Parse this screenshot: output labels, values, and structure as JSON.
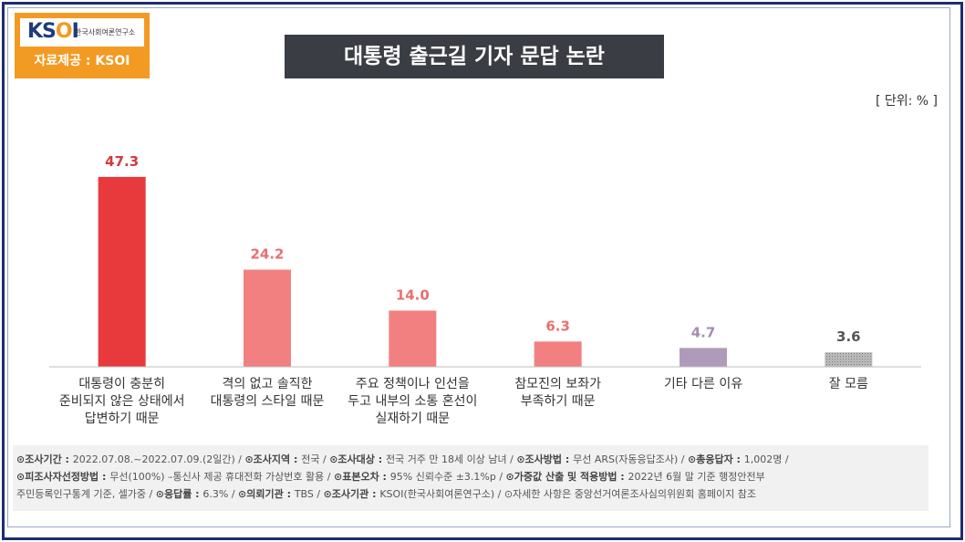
{
  "logo": {
    "mark": "KSOI",
    "org": "한국사회여론연구소",
    "source": "자료제공 : KSOI"
  },
  "title": "대통령 출근길 기자 문답 논란",
  "unit": "[ 단위: % ]",
  "chart_data": {
    "type": "bar",
    "title": "대통령 출근길 기자 문답 논란",
    "unit": "%",
    "categories": [
      [
        "대통령이 충분히",
        "준비되지 않은 상태에서",
        "답변하기 때문"
      ],
      [
        "격의 없고 솔직한",
        "대통령의 스타일 때문"
      ],
      [
        "주요 정책이나 인선을",
        "두고 내부의 소통 혼선이",
        "실재하기 때문"
      ],
      [
        "참모진의 보좌가",
        "부족하기 때문"
      ],
      [
        "기타 다른 이유"
      ],
      [
        "잘 모름"
      ]
    ],
    "values": [
      47.3,
      24.2,
      14.0,
      6.3,
      4.7,
      3.6
    ],
    "value_labels": [
      "47.3",
      "24.2",
      "14.0",
      "6.3",
      "4.7",
      "3.6"
    ],
    "colors": [
      "#e8393c",
      "#f28080",
      "#f28080",
      "#f28080",
      "#b09ab9",
      "#a9a9a9"
    ],
    "label_colors": [
      "#d5383b",
      "#ea6f6f",
      "#ea6f6f",
      "#ea6f6f",
      "#a48db0",
      "#555555"
    ],
    "ylim": [
      0,
      50
    ],
    "grid": false
  },
  "footnote": {
    "line1": [
      {
        "label": "⊙조사기간 : ",
        "text": "2022.07.08.~2022.07.09.(2일간) / "
      },
      {
        "label": "⊙조사지역 : ",
        "text": "전국 / "
      },
      {
        "label": "⊙조사대상 : ",
        "text": "전국 거주 만 18세 이상 남녀 / "
      },
      {
        "label": "⊙조사방법 : ",
        "text": "무선 ARS(자동응답조사) / "
      },
      {
        "label": "⊙총응답자 : ",
        "text": "1,002명 /"
      }
    ],
    "line2": [
      {
        "label": "⊙피조사자선정방법 : ",
        "text": "무선(100%) –통신사 제공 휴대전화 가상번호 활용 / "
      },
      {
        "label": "⊙표본오차 : ",
        "text": "95% 신뢰수준 ±3.1%p / "
      },
      {
        "label": "⊙가중값 산출 및 적용방법 : ",
        "text": "2022년 6월 말 기준 행정안전부"
      }
    ],
    "line3": [
      {
        "label": "",
        "text": "주민등록인구통계 기준, 셀가중 / "
      },
      {
        "label": "⊙응답률 : ",
        "text": "6.3% / "
      },
      {
        "label": "⊙의뢰기관 : ",
        "text": "TBS / "
      },
      {
        "label": "⊙조사기관 : ",
        "text": "KSOI(한국사회여론연구소) / "
      },
      {
        "label": "",
        "text": "⊙자세한 사항은 중앙선거여론조사심의위원회 홈페이지 참조"
      }
    ]
  }
}
